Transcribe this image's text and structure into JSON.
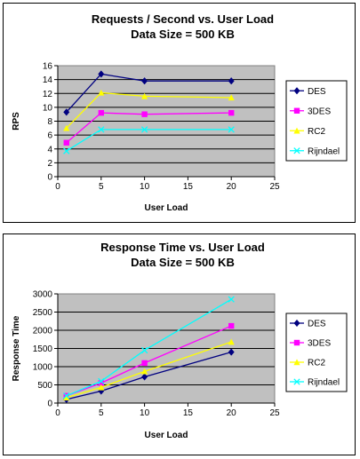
{
  "colors": {
    "plot_background": "#c0c0c0",
    "gridline": "#000000",
    "DES": "#000080",
    "3DES": "#ff00ff",
    "RC2": "#ffff00",
    "Rijndael": "#00ffff"
  },
  "chart_data": [
    {
      "type": "line",
      "title": "Requests / Second  vs.  User Load",
      "subtitle": "Data Size = 500 KB",
      "xlabel": "User Load",
      "ylabel": "RPS",
      "xlim": [
        0,
        25
      ],
      "ylim": [
        0,
        16
      ],
      "xticks": [
        "0",
        "5",
        "10",
        "15",
        "20",
        "25"
      ],
      "yticks": [
        "0",
        "2",
        "4",
        "6",
        "8",
        "10",
        "12",
        "14",
        "16"
      ],
      "grid": "horizontal",
      "legend": "right",
      "x": [
        1,
        5,
        10,
        20
      ],
      "series": [
        {
          "name": "DES",
          "marker": "diamond",
          "values": [
            9.3,
            14.8,
            13.8,
            13.8
          ]
        },
        {
          "name": "3DES",
          "marker": "square",
          "values": [
            4.9,
            9.2,
            9.0,
            9.2
          ]
        },
        {
          "name": "RC2",
          "marker": "triangle",
          "values": [
            7.0,
            12.1,
            11.6,
            11.4
          ]
        },
        {
          "name": "Rijndael",
          "marker": "x",
          "values": [
            3.7,
            6.8,
            6.8,
            6.8
          ]
        }
      ]
    },
    {
      "type": "line",
      "title": "Response Time  vs.  User Load",
      "subtitle": "Data Size = 500 KB",
      "xlabel": "User Load",
      "ylabel": "Response Time",
      "xlim": [
        0,
        25
      ],
      "ylim": [
        0,
        3000
      ],
      "xticks": [
        "0",
        "5",
        "10",
        "15",
        "20",
        "25"
      ],
      "yticks": [
        "0",
        "500",
        "1000",
        "1500",
        "2000",
        "2500",
        "3000"
      ],
      "grid": "horizontal",
      "legend": "right",
      "x": [
        1,
        5,
        10,
        20
      ],
      "series": [
        {
          "name": "DES",
          "marker": "diamond",
          "values": [
            100,
            330,
            720,
            1400
          ]
        },
        {
          "name": "3DES",
          "marker": "square",
          "values": [
            200,
            550,
            1100,
            2120
          ]
        },
        {
          "name": "RC2",
          "marker": "triangle",
          "values": [
            150,
            430,
            870,
            1680
          ]
        },
        {
          "name": "Rijndael",
          "marker": "x",
          "values": [
            200,
            600,
            1450,
            2850
          ]
        }
      ]
    }
  ]
}
